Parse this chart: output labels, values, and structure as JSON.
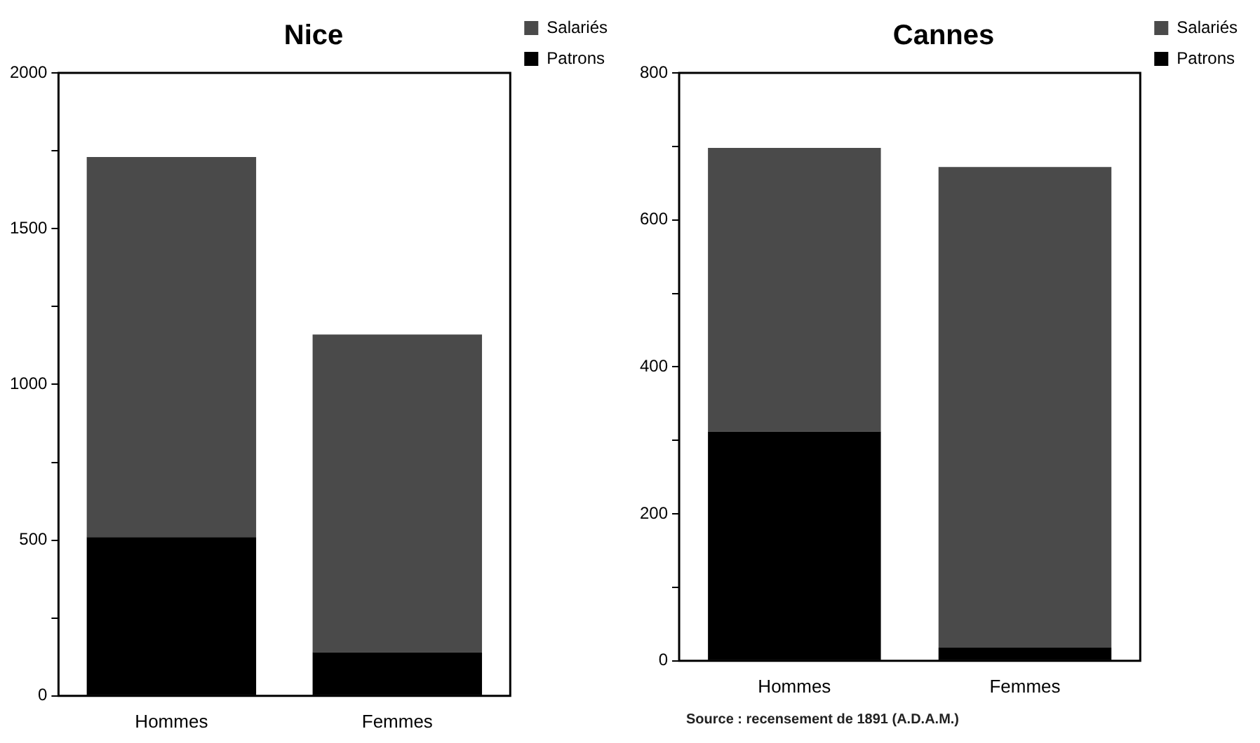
{
  "chart_data": [
    {
      "type": "bar",
      "title": "Nice",
      "categories": [
        "Hommes",
        "Femmes"
      ],
      "stacked": true,
      "legend": "top right",
      "series": [
        {
          "name": "Patrons",
          "color": "#000000",
          "values": [
            510,
            140
          ]
        },
        {
          "name": "Salariés",
          "color": "#4a4a4a",
          "values": [
            1220,
            1020
          ]
        }
      ],
      "ylim": [
        0,
        2000
      ],
      "yticks": [
        0,
        {
          "value": 250,
          "label": null
        },
        500,
        {
          "value": 750,
          "label": null
        },
        1000,
        {
          "value": 1250,
          "label": null
        },
        1500,
        {
          "value": 1750,
          "label": null
        },
        2000
      ]
    },
    {
      "type": "bar",
      "title": "Cannes",
      "categories": [
        "Hommes",
        "Femmes"
      ],
      "stacked": true,
      "legend": "top right",
      "series": [
        {
          "name": "Patrons",
          "color": "#000000",
          "values": [
            312,
            18
          ]
        },
        {
          "name": "Salariés",
          "color": "#4a4a4a",
          "values": [
            386,
            654
          ]
        }
      ],
      "ylim": [
        0,
        800
      ],
      "yticks": [
        0,
        {
          "value": 100,
          "label": null
        },
        200,
        {
          "value": 300,
          "label": null
        },
        400,
        {
          "value": 500,
          "label": null
        },
        600,
        {
          "value": 700,
          "label": null
        },
        800
      ],
      "annotations": [
        "Source : recensement de 1891 (A.D.A.M.)"
      ]
    }
  ]
}
